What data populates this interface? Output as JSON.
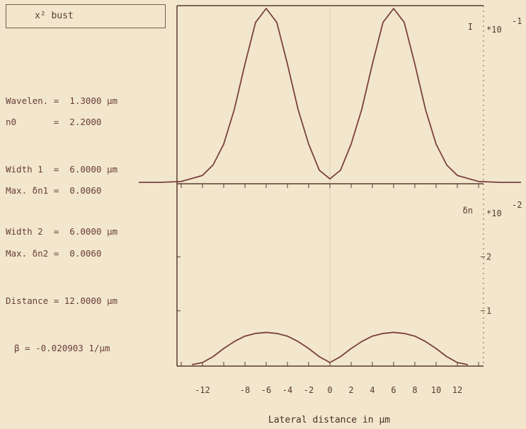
{
  "mode_box": {
    "label": "x²  bust"
  },
  "parameters": [
    {
      "text": "Wavelen. =  1.3000 µm"
    },
    {
      "text": "n0       =  2.2000"
    },
    {
      "text": "Width 1  =  6.0000 µm"
    },
    {
      "text": "Max. δn1 =  0.0060"
    },
    {
      "text": "Width 2  =  6.0000 µm"
    },
    {
      "text": "Max. δn2 =  0.0060"
    },
    {
      "text": "Distance = 12.0000 µm"
    },
    {
      "text": "β = -0.020903 1/µm"
    }
  ],
  "colors": {
    "background": "#f2e7cc",
    "curve": "#7a4040",
    "axis": "#5a3a32",
    "text": "#5a3a32"
  },
  "chart_data": [
    {
      "type": "line",
      "panel": "intensity",
      "title": "",
      "ylabel": "I",
      "yscale_label": "*10",
      "yscale_exp": "-1",
      "xlim": [
        -18,
        18
      ],
      "ylim": [
        0,
        1
      ],
      "x": [
        -18,
        -16,
        -14,
        -12,
        -11,
        -10,
        -9,
        -8,
        -7,
        -6,
        -5,
        -4,
        -3,
        -2,
        -1,
        0,
        1,
        2,
        3,
        4,
        5,
        6,
        7,
        8,
        9,
        10,
        11,
        12,
        14,
        16,
        18
      ],
      "y": [
        0.0,
        0.0,
        0.005,
        0.04,
        0.1,
        0.22,
        0.42,
        0.68,
        0.92,
        1.0,
        0.92,
        0.68,
        0.42,
        0.22,
        0.07,
        0.02,
        0.07,
        0.22,
        0.42,
        0.68,
        0.92,
        1.0,
        0.92,
        0.68,
        0.42,
        0.22,
        0.1,
        0.04,
        0.005,
        0.0,
        0.0
      ]
    },
    {
      "type": "line",
      "panel": "index",
      "ylabel": "δn",
      "yscale_label": "*10",
      "yscale_exp": "-2",
      "ytick_labels": [
        "1",
        "2"
      ],
      "ytick_values": [
        1,
        2
      ],
      "xlim": [
        -18,
        18
      ],
      "ylim": [
        0,
        3.2
      ],
      "x": [
        -13,
        -12,
        -11,
        -10,
        -9,
        -8,
        -7,
        -6,
        -5,
        -4,
        -3,
        -2,
        -1,
        0,
        1,
        2,
        3,
        4,
        5,
        6,
        7,
        8,
        9,
        10,
        11,
        12,
        13
      ],
      "y": [
        0,
        0.04,
        0.15,
        0.3,
        0.43,
        0.53,
        0.58,
        0.6,
        0.58,
        0.53,
        0.43,
        0.3,
        0.15,
        0.04,
        0.15,
        0.3,
        0.43,
        0.53,
        0.58,
        0.6,
        0.58,
        0.53,
        0.43,
        0.3,
        0.15,
        0.04,
        0
      ]
    }
  ],
  "x_axis": {
    "label": "Lateral distance in µm",
    "tick_labels": [
      {
        "v": -12,
        "t": "-12"
      },
      {
        "v": -8,
        "t": "-8"
      },
      {
        "v": -6,
        "t": "-6"
      },
      {
        "v": -4,
        "t": "-4"
      },
      {
        "v": -2,
        "t": "-2"
      },
      {
        "v": 0,
        "t": "0"
      },
      {
        "v": 2,
        "t": "2"
      },
      {
        "v": 4,
        "t": "4"
      },
      {
        "v": 6,
        "t": "6"
      },
      {
        "v": 8,
        "t": "8"
      },
      {
        "v": 10,
        "t": "10"
      },
      {
        "v": 12,
        "t": "12"
      }
    ]
  }
}
